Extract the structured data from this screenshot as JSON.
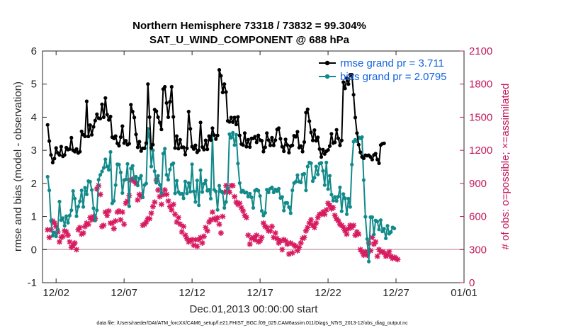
{
  "chart_data": {
    "type": "line",
    "title": "Northern Hemisphere 73318 / 73832 = 99.304%",
    "subtitle": "SAT_U_WIND_COMPONENT @ 688 hPa",
    "xlabel": "Dec.01,2013 00:00:00 start",
    "ylabel": "rmse and bias (model - observation)",
    "ylabel_right": "# of obs: o=possible; ×=assimilated",
    "footer": "data file: /Users/raeder/DAI/ATM_forcXX/CAM6_setup/f.e21.FHIST_BGC.f09_025.CAM6assim.011/Diags_NTrS_2013-12/obs_diag_output.nc",
    "xlim": [
      0,
      31
    ],
    "ylim": [
      -1,
      6
    ],
    "ylim_right": [
      0,
      2100
    ],
    "x_ticks": [
      1,
      6,
      11,
      16,
      21,
      26,
      31
    ],
    "x_tick_labels": [
      "12/02",
      "12/07",
      "12/12",
      "12/17",
      "12/22",
      "12/27",
      "01/01"
    ],
    "y_ticks": [
      -1,
      0,
      1,
      2,
      3,
      4,
      5,
      6
    ],
    "y_ticks_right": [
      0,
      300,
      600,
      900,
      1200,
      1500,
      1800,
      2100
    ],
    "legend_position": "top-right",
    "colors": {
      "rmse": "#000000",
      "bias": "#138a8a",
      "obs": "#d81b60",
      "zero_line": "#c8a5b0",
      "legend_text": "#1565e0"
    },
    "series": [
      {
        "name": "rmse grand pr = 3.711",
        "values": [
          3.77,
          3.28,
          2.86,
          2.63,
          2.75,
          3.07,
          2.92,
          2.86,
          3.11,
          2.82,
          2.86,
          3.08,
          3.02,
          3.04,
          3.38,
          3.0,
          2.96,
          3.04,
          2.92,
          2.96,
          3.57,
          3.47,
          3.42,
          4.48,
          3.42,
          3.76,
          3.47,
          3.71,
          3.9,
          4.09,
          3.97,
          3.96,
          4.39,
          4.0,
          4.58,
          4.08,
          3.92,
          4.02,
          3.4,
          3.36,
          3.43,
          3.21,
          3.14,
          3.4,
          3.73,
          3.22,
          3.29,
          3.17,
          3.2,
          4.38,
          4.17,
          3.99,
          3.48,
          3.09,
          3.26,
          2.98,
          3.06,
          3.06,
          3.22,
          5.0,
          4.0,
          3.07,
          3.17,
          4.23,
          4.18,
          4.0,
          3.84,
          3.63,
          4.85,
          4.92,
          4.43,
          4.0,
          4.47,
          4.92,
          4.01,
          3.07,
          3.43,
          3.05,
          3.32,
          3.09,
          3.09,
          2.87,
          3.06,
          4.17,
          3.65,
          3.11,
          3.04,
          3.15,
          2.94,
          3.0,
          3.84,
          3.1,
          3.02,
          3.3,
          3.03,
          3.43,
          3.31,
          3.67,
          3.46,
          3.34,
          3.45,
          5.43,
          5.25,
          4.75,
          5.0,
          4.76,
          3.89,
          3.86,
          3.99,
          3.85,
          3.99,
          3.78,
          4.01,
          3.45,
          3.19,
          3.16,
          3.52,
          3.11,
          3.32,
          3.1,
          3.36,
          3.36,
          3.41,
          3.24,
          3.45,
          3.31,
          3.29,
          2.96,
          3.09,
          3.52,
          3.31,
          3.15,
          3.38,
          3.15,
          3.31,
          3.63,
          3.67,
          3.35,
          3.11,
          2.97,
          3.33,
          3.16,
          2.93,
          3.13,
          3.15,
          3.44,
          3.41,
          3.56,
          3.08,
          3.13,
          2.96,
          3.25,
          4.14,
          4.24,
          3.88,
          3.54,
          3.3,
          3.61,
          3.29,
          3.39,
          3.04,
          2.8,
          3.02,
          2.89,
          2.97,
          3.01,
          3.13,
          3.5,
          3.22,
          3.24,
          3.62,
          3.36,
          3.15,
          3.3,
          5.06,
          4.87,
          5.18,
          5.0,
          5.28,
          5.28,
          4.68,
          3.99,
          3.52,
          3.17,
          2.94,
          2.8,
          2.76,
          2.85,
          2.84,
          2.85,
          2.8,
          2.72,
          2.86,
          2.9,
          2.72,
          2.61,
          3.16,
          3.2,
          3.21
        ]
      },
      {
        "name": "bias grand pr = 2.0795",
        "values": [
          2.2,
          1.79,
          0.87,
          0.42,
          0.52,
          0.4,
          0.62,
          1.45,
          0.89,
          0.95,
          0.72,
          1.01,
          0.81,
          1.03,
          1.19,
          1.77,
          1.54,
          1.01,
          1.3,
          1.46,
          1.79,
          1.29,
          1.87,
          1.67,
          2.07,
          2.05,
          1.8,
          1.25,
          0.88,
          1.19,
          2.11,
          2.26,
          2.36,
          2.47,
          2.73,
          2.51,
          2.41,
          2.95,
          1.4,
          1.47,
          1.95,
          2.58,
          2.57,
          2.33,
          1.71,
          2.1,
          2.12,
          2.59,
          1.31,
          2.45,
          2.53,
          2.14,
          2.2,
          1.94,
          2.15,
          2.23,
          1.58,
          1.95,
          2.0,
          3.65,
          3.41,
          2.51,
          3.0,
          2.37,
          2.02,
          2.23,
          1.96,
          1.71,
          2.9,
          3.05,
          2.26,
          2.11,
          2.42,
          2.57,
          2.61,
          1.7,
          2.08,
          1.74,
          1.68,
          1.69,
          1.55,
          2.06,
          1.7,
          2.01,
          1.75,
          2.58,
          1.76,
          1.44,
          2.09,
          1.34,
          2.4,
          1.74,
          1.99,
          2.09,
          1.78,
          1.81,
          1.54,
          3.48,
          1.81,
          1.76,
          1.2,
          1.93,
          1.76,
          1.72,
          1.26,
          1.44,
          1.85,
          3.49,
          3.38,
          3.53,
          3.16,
          3.47,
          2.6,
          2.01,
          1.74,
          1.78,
          1.72,
          1.73,
          1.6,
          1.69,
          1.58,
          1.26,
          1.78,
          1.82,
          1.78,
          1.62,
          1.17,
          1.03,
          1.11,
          1.81,
          1.73,
          1.84,
          1.88,
          1.73,
          1.82,
          1.77,
          1.84,
          1.56,
          1.59,
          1.18,
          1.41,
          1.41,
          1.28,
          1.1,
          1.79,
          2.01,
          2.05,
          2.25,
          2.05,
          2.03,
          2.27,
          2.29,
          1.79,
          2.51,
          2.63,
          2.61,
          2.07,
          2.17,
          2.51,
          2.27,
          2.6,
          2.62,
          2.38,
          1.95,
          2.63,
          1.83,
          2.23,
          1.66,
          1.48,
          1.59,
          1.47,
          1.6,
          1.88,
          1.16,
          1.68,
          1.55,
          1.07,
          1.54,
          1.29,
          2.57,
          3.26,
          3.32,
          3.27,
          3.39,
          3.36,
          3.4,
          2.1,
          0.99,
          0.32,
          -0.36,
          0.98,
          0.98,
          0.46,
          0.88,
          0.85,
          0.61,
          0.89,
          0.55,
          0.63,
          0.34,
          0.72,
          0.48,
          0.53,
          0.67,
          0.64
        ]
      }
    ],
    "obs_count": {
      "name": "# of obs",
      "values": [
        480,
        410,
        480,
        560,
        540,
        510,
        460,
        370,
        410,
        420,
        470,
        460,
        430,
        370,
        320,
        340,
        360,
        300,
        480,
        500,
        440,
        450,
        510,
        540,
        530,
        590,
        570,
        600,
        580,
        850,
        880,
        800,
        510,
        520,
        640,
        610,
        650,
        540,
        540,
        490,
        560,
        640,
        650,
        570,
        640,
        530,
        720,
        740,
        790,
        930,
        940,
        920,
        900,
        750,
        800,
        780,
        520,
        530,
        550,
        580,
        580,
        630,
        690,
        730,
        930,
        840,
        780,
        710,
        800,
        840,
        800,
        740,
        690,
        660,
        710,
        620,
        550,
        590,
        530,
        460,
        510,
        430,
        400,
        370,
        380,
        390,
        340,
        390,
        330,
        390,
        410,
        360,
        420,
        500,
        470,
        550,
        570,
        640,
        580,
        570,
        590,
        530,
        450,
        600,
        820,
        880,
        840,
        820,
        880,
        880,
        780,
        730,
        710,
        720,
        680,
        650,
        610,
        590,
        430,
        350,
        400,
        410,
        390,
        430,
        370,
        380,
        410,
        540,
        510,
        500,
        470,
        470,
        510,
        410,
        450,
        400,
        360,
        380,
        300,
        390,
        380,
        350,
        260,
        360,
        270,
        340,
        330,
        290,
        320,
        360,
        400,
        410,
        470,
        500,
        540,
        570,
        520,
        500,
        540,
        590,
        620,
        620,
        640,
        620,
        660,
        720,
        700,
        670,
        680,
        610,
        580,
        560,
        530,
        520,
        500,
        470,
        440,
        490,
        520,
        500,
        520,
        430,
        460,
        440,
        300,
        280,
        250,
        280,
        250,
        360,
        290,
        410,
        350,
        370,
        240,
        300,
        280,
        280,
        270,
        240,
        250,
        280,
        240,
        220,
        230,
        220,
        210
      ]
    }
  }
}
